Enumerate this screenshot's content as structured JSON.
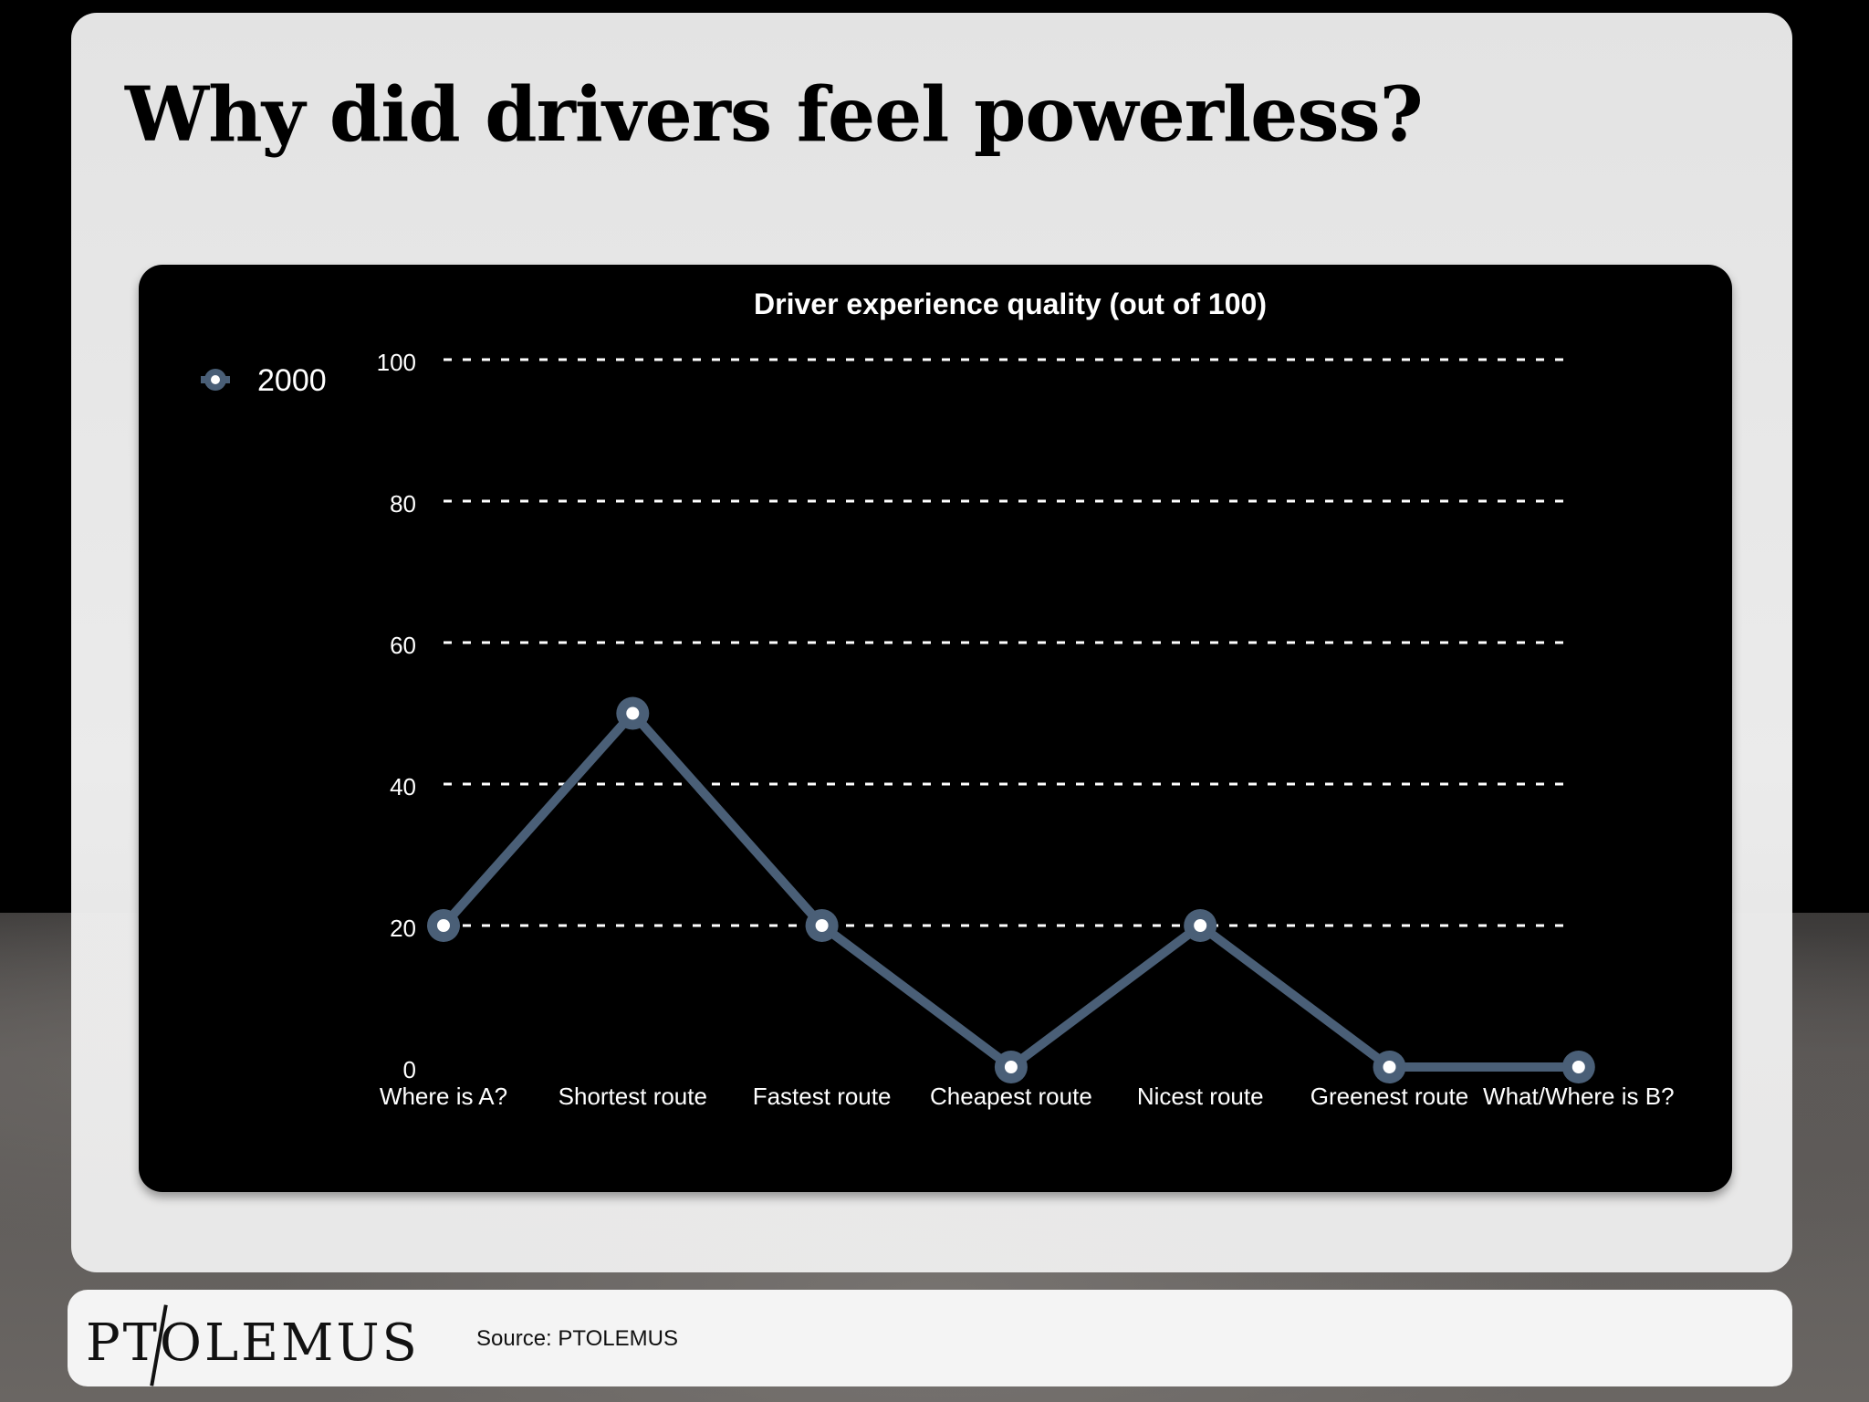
{
  "slide": {
    "title": "Why did drivers feel powerless?"
  },
  "footer": {
    "logo": "PTOLEMUS",
    "source": "Source: PTOLEMUS"
  },
  "colors": {
    "series": "#4a5f77",
    "grid": "#ffffff",
    "panel": "#000000"
  },
  "chart_data": {
    "type": "line",
    "title": "Driver experience quality (out of 100)",
    "xlabel": "",
    "ylabel": "",
    "categories": [
      "Where is A?",
      "Shortest route",
      "Fastest route",
      "Cheapest route",
      "Nicest route",
      "Greenest route",
      "What/Where is B?"
    ],
    "series": [
      {
        "name": "2000",
        "values": [
          20,
          50,
          20,
          0,
          20,
          0,
          0
        ]
      }
    ],
    "ylim": [
      0,
      100
    ],
    "yticks": [
      0,
      20,
      40,
      60,
      80,
      100
    ],
    "grid": true,
    "legend": "top-left"
  }
}
